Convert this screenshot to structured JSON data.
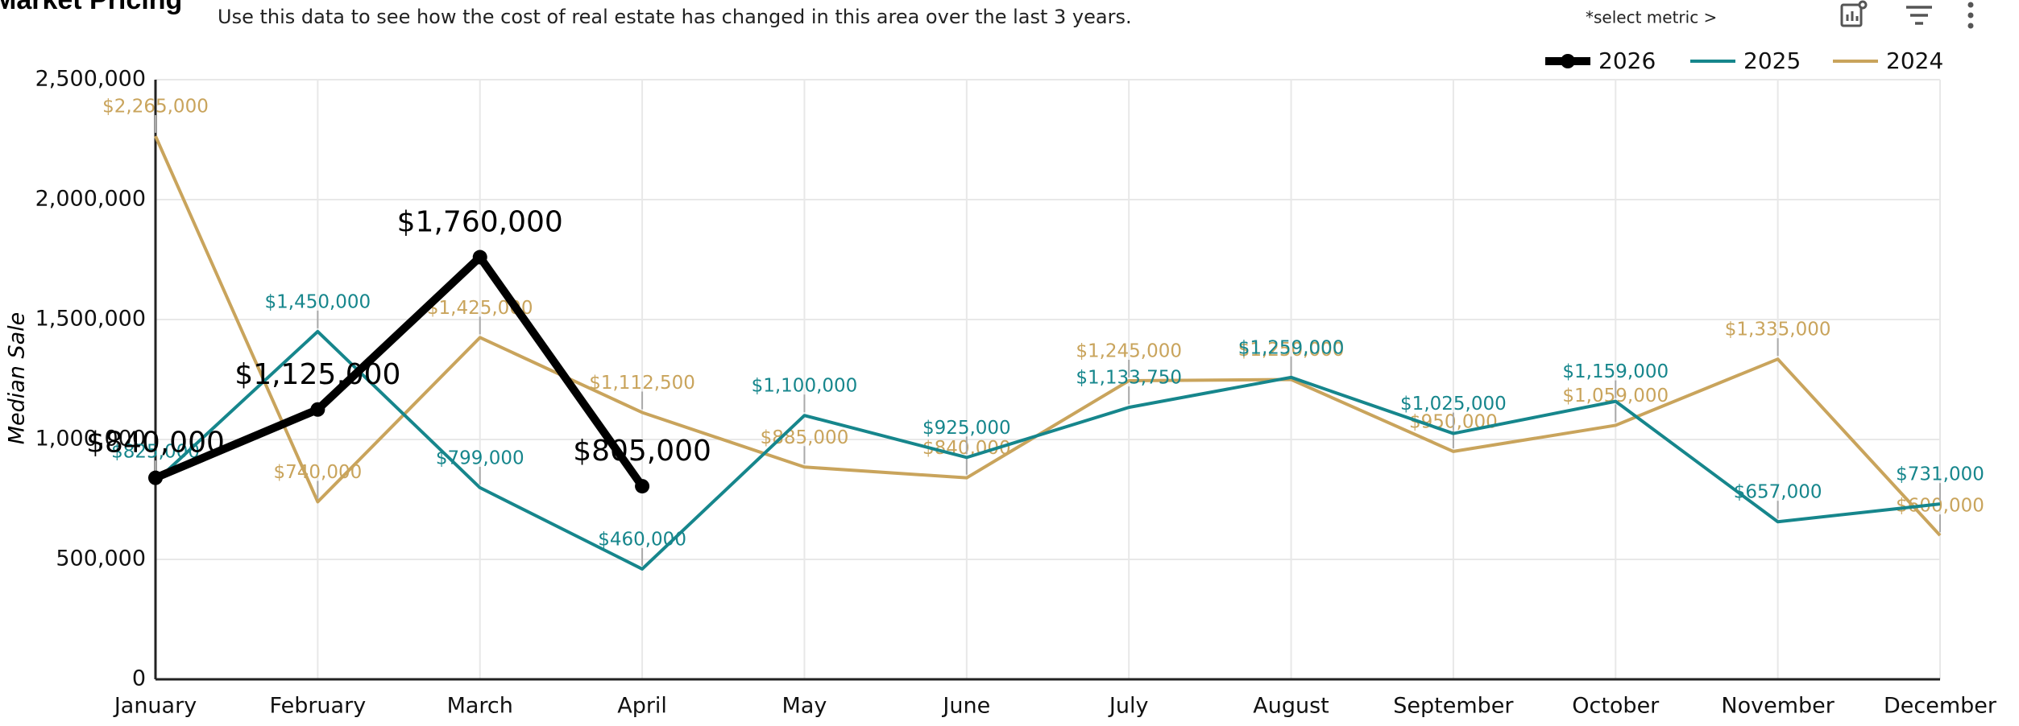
{
  "header": {
    "title": "Market Pricing",
    "subtitle": "Use this data to see how the cost of real estate has changed in this area over the last 3 years.",
    "metric_selector": "*select metric >"
  },
  "chart_data": {
    "type": "line",
    "ylabel": "Median Sale",
    "categories": [
      "January",
      "February",
      "March",
      "April",
      "May",
      "June",
      "July",
      "August",
      "September",
      "October",
      "November",
      "December"
    ],
    "ylim": [
      0,
      2500000
    ],
    "yticks": [
      {
        "value": 0,
        "label": "0"
      },
      {
        "value": 500000,
        "label": "500,000"
      },
      {
        "value": 1000000,
        "label": "1,000,000"
      },
      {
        "value": 1500000,
        "label": "1,500,000"
      },
      {
        "value": 2000000,
        "label": "2,000,000"
      },
      {
        "value": 2500000,
        "label": "2,500,000"
      }
    ],
    "grid": true,
    "legend": "top-right",
    "series": [
      {
        "name": "2026",
        "color": "#000000",
        "values": [
          840000,
          1125000,
          1760000,
          805000,
          null,
          null,
          null,
          null,
          null,
          null,
          null,
          null
        ],
        "value_labels": [
          "$840,000",
          "$1,125,000",
          "$1,760,000",
          "$805,000",
          null,
          null,
          null,
          null,
          null,
          null,
          null,
          null
        ]
      },
      {
        "name": "2025",
        "color": "#16868c",
        "values": [
          825000,
          1450000,
          799000,
          460000,
          1100000,
          925000,
          1133750,
          1259000,
          1025000,
          1159000,
          657000,
          731000
        ],
        "value_labels": [
          "$825,000",
          "$1,450,000",
          "$799,000",
          "$460,000",
          "$1,100,000",
          "$925,000",
          "$1,133,750",
          "$1,259,000",
          "$1,025,000",
          "$1,159,000",
          "$657,000",
          "$731,000"
        ]
      },
      {
        "name": "2024",
        "color": "#c9a45c",
        "values": [
          2265000,
          740000,
          1425000,
          1112500,
          885000,
          840000,
          1245000,
          1250000,
          950000,
          1059000,
          1335000,
          600000
        ],
        "value_labels": [
          "$2,265,000",
          "$740,000",
          "$1,425,000",
          "$1,112,500",
          "$885,000",
          "$840,000",
          "$1,245,000",
          "$1,250,000",
          "$950,000",
          "$1,059,000",
          "$1,335,000",
          "$600,000"
        ]
      }
    ]
  }
}
